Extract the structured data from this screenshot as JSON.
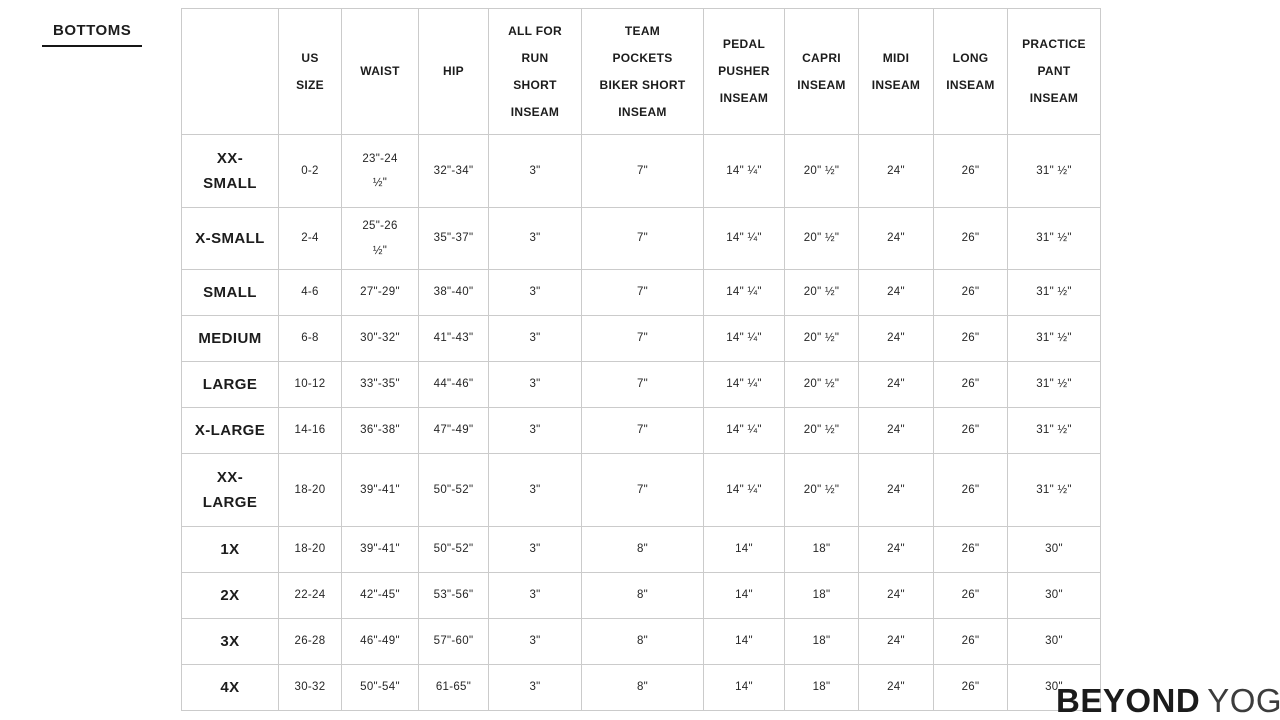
{
  "page": {
    "title": "BOTTOMS"
  },
  "brand": {
    "name_primary": "BEYOND",
    "name_secondary": "YOGA"
  },
  "colors": {
    "text": "#1d1d1d",
    "border": "#cbcbcb",
    "bg": "#ffffff"
  },
  "chart_data": {
    "type": "table",
    "title": "BOTTOMS",
    "columns": [
      "",
      "US\nSIZE",
      "WAIST",
      "HIP",
      "ALL FOR\nRUN\nSHORT\nINSEAM",
      "TEAM\nPOCKETS\nBIKER SHORT\nINSEAM",
      "PEDAL\nPUSHER\nINSEAM",
      "CAPRI\nINSEAM",
      "MIDI\nINSEAM",
      "LONG\nINSEAM",
      "PRACTICE\nPANT\nINSEAM"
    ],
    "rows": [
      {
        "label": "XX-\nSMALL",
        "values": [
          "0-2",
          "23\"-24\n½\"",
          "32\"-34\"",
          "3\"",
          "7\"",
          "14\" ¼\"",
          "20\" ½\"",
          "24\"",
          "26\"",
          "31\" ½\""
        ]
      },
      {
        "label": "X-SMALL",
        "values": [
          "2-4",
          "25\"-26\n½\"",
          "35\"-37\"",
          "3\"",
          "7\"",
          "14\" ¼\"",
          "20\" ½\"",
          "24\"",
          "26\"",
          "31\" ½\""
        ]
      },
      {
        "label": "SMALL",
        "values": [
          "4-6",
          "27\"-29\"",
          "38\"-40\"",
          "3\"",
          "7\"",
          "14\" ¼\"",
          "20\" ½\"",
          "24\"",
          "26\"",
          "31\" ½\""
        ]
      },
      {
        "label": "MEDIUM",
        "values": [
          "6-8",
          "30\"-32\"",
          "41\"-43\"",
          "3\"",
          "7\"",
          "14\" ¼\"",
          "20\" ½\"",
          "24\"",
          "26\"",
          "31\" ½\""
        ]
      },
      {
        "label": "LARGE",
        "values": [
          "10-12",
          "33\"-35\"",
          "44\"-46\"",
          "3\"",
          "7\"",
          "14\" ¼\"",
          "20\" ½\"",
          "24\"",
          "26\"",
          "31\" ½\""
        ]
      },
      {
        "label": "X-LARGE",
        "values": [
          "14-16",
          "36\"-38\"",
          "47\"-49\"",
          "3\"",
          "7\"",
          "14\" ¼\"",
          "20\" ½\"",
          "24\"",
          "26\"",
          "31\" ½\""
        ]
      },
      {
        "label": "XX-\nLARGE",
        "values": [
          "18-20",
          "39\"-41\"",
          "50\"-52\"",
          "3\"",
          "7\"",
          "14\" ¼\"",
          "20\" ½\"",
          "24\"",
          "26\"",
          "31\" ½\""
        ]
      },
      {
        "label": "1X",
        "values": [
          "18-20",
          "39\"-41\"",
          "50\"-52\"",
          "3\"",
          "8\"",
          "14\"",
          "18\"",
          "24\"",
          "26\"",
          "30\""
        ]
      },
      {
        "label": "2X",
        "values": [
          "22-24",
          "42\"-45\"",
          "53\"-56\"",
          "3\"",
          "8\"",
          "14\"",
          "18\"",
          "24\"",
          "26\"",
          "30\""
        ]
      },
      {
        "label": "3X",
        "values": [
          "26-28",
          "46\"-49\"",
          "57\"-60\"",
          "3\"",
          "8\"",
          "14\"",
          "18\"",
          "24\"",
          "26\"",
          "30\""
        ]
      },
      {
        "label": "4X",
        "values": [
          "30-32",
          "50\"-54\"",
          "61-65\"",
          "3\"",
          "8\"",
          "14\"",
          "18\"",
          "24\"",
          "26\"",
          "30\""
        ]
      }
    ]
  }
}
